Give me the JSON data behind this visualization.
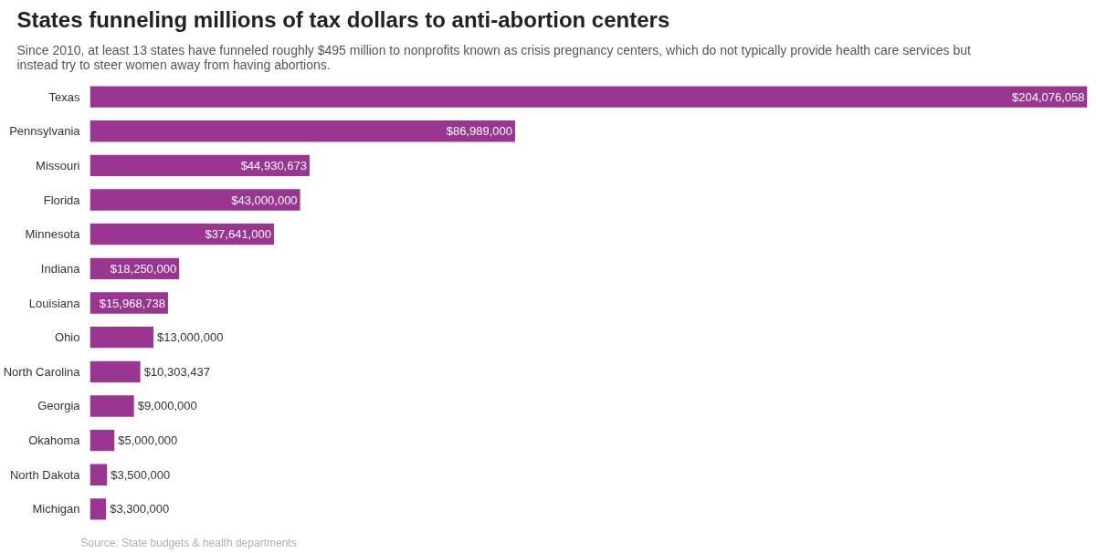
{
  "chart_data": {
    "type": "bar",
    "orientation": "horizontal",
    "title": "States funneling millions of tax dollars to anti-abortion centers",
    "subtitle": "Since 2010, at least 13 states have funneled roughly $495 million to nonprofits known as crisis pregnancy centers, which do not typically provide health care services but instead try to steer women away from having abortions.",
    "categories": [
      "Texas",
      "Pennsylvania",
      "Missouri",
      "Florida",
      "Minnesota",
      "Indiana",
      "Louisiana",
      "Ohio",
      "North Carolina",
      "Georgia",
      "Okahoma",
      "North Dakota",
      "Michigan"
    ],
    "values": [
      204076058,
      86989000,
      44930673,
      43000000,
      37641000,
      18250000,
      15968738,
      13000000,
      10303437,
      9000000,
      5000000,
      3500000,
      3300000
    ],
    "value_labels": [
      "$204,076,058",
      "$86,989,000",
      "$44,930,673",
      "$43,000,000",
      "$37,641,000",
      "$18,250,000",
      "$15,968,738",
      "$13,000,000",
      "$10,303,437",
      "$9,000,000",
      "$5,000,000",
      "$3,500,000",
      "$3,300,000"
    ],
    "color": "#9a3592",
    "annotations": [
      "Source: State budgets & health departments"
    ]
  }
}
